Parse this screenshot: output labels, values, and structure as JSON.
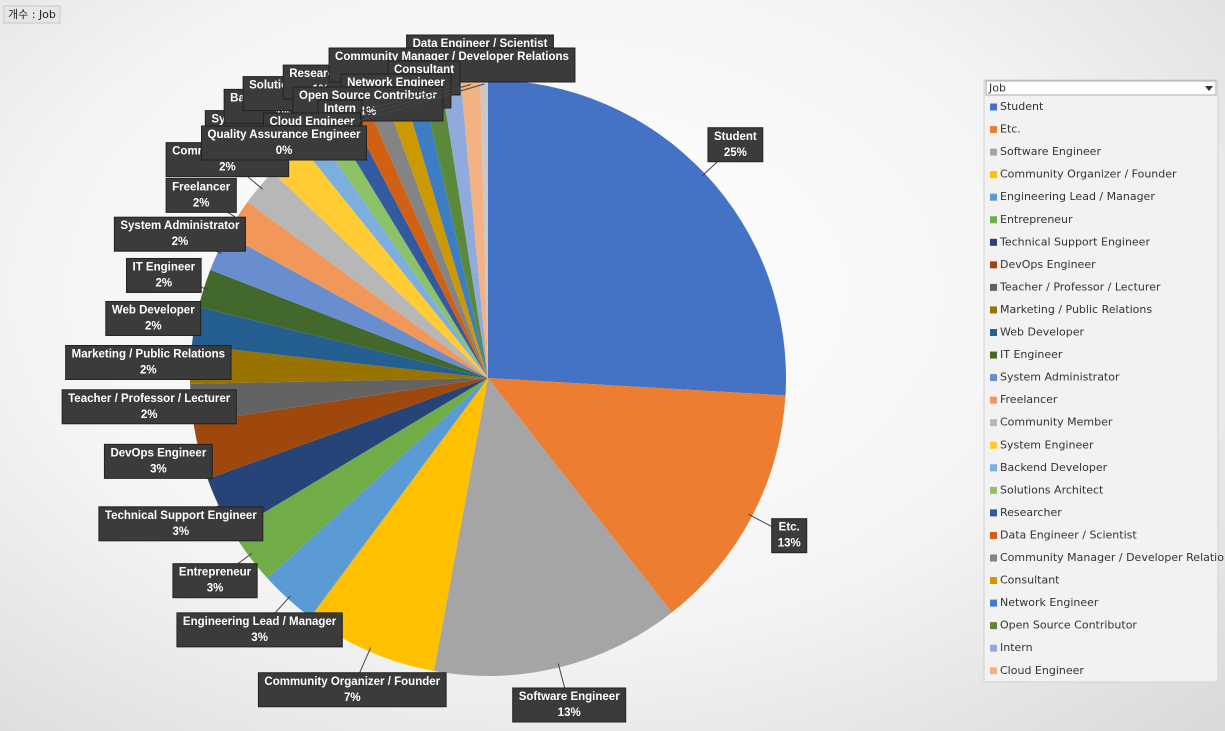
{
  "field_button": "개수 : Job",
  "chart_data": {
    "type": "pie",
    "legend_title": "Job",
    "legend_position": "right",
    "categories": [
      "Student",
      "Etc.",
      "Software Engineer",
      "Community Organizer / Founder",
      "Engineering Lead / Manager",
      "Entrepreneur",
      "Technical Support Engineer",
      "DevOps Engineer",
      "Teacher / Professor / Lecturer",
      "Marketing / Public Relations",
      "Web Developer",
      "IT Engineer",
      "System Administrator",
      "Freelancer",
      "Community Member",
      "System Engineer",
      "Backend Developer",
      "Solutions Architect",
      "Researcher",
      "Data Engineer / Scientist",
      "Community Manager / Developer Relations",
      "Consultant",
      "Network Engineer",
      "Open Source Contributor",
      "Intern",
      "Cloud Engineer",
      "Quality Assurance Engineer"
    ],
    "values": [
      25,
      13,
      13,
      7,
      3,
      3,
      3,
      3,
      2,
      2,
      2,
      2,
      2,
      2,
      2,
      2,
      1,
      1,
      1,
      1,
      1,
      1,
      1,
      1,
      1,
      1,
      0.4
    ],
    "value_labels": [
      "25%",
      "13%",
      "13%",
      "7%",
      "3%",
      "3%",
      "3%",
      "3%",
      "2%",
      "2%",
      "2%",
      "2%",
      "2%",
      "2%",
      "2%",
      "2%",
      "1%",
      "1%",
      "1%",
      "1%",
      "1%",
      "1%",
      "1%",
      "1%",
      "1%",
      "1%",
      "0%"
    ],
    "colors": [
      "#4472c4",
      "#ed7d31",
      "#a5a5a5",
      "#ffc000",
      "#5b9bd5",
      "#70ad47",
      "#264478",
      "#9e480e",
      "#636363",
      "#997300",
      "#255e91",
      "#43682b",
      "#698ed0",
      "#f1975a",
      "#b7b7b7",
      "#ffcd33",
      "#7cafdd",
      "#8cc168",
      "#335aa1",
      "#d26012",
      "#848484",
      "#cc9a00",
      "#3c7dc4",
      "#5a8a39",
      "#8faadc",
      "#f4b183",
      "#c9c9c9"
    ]
  }
}
